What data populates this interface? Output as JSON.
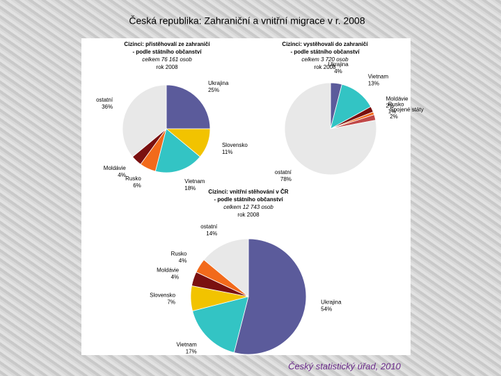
{
  "slide_title": "Česká republika: Zahraniční a vnitřní migrace v r. 2008",
  "footer": "Český statistický úřad, 2010",
  "chart_data": [
    {
      "type": "pie",
      "title": "Cizinci: přistěhovalí ze zahraničí",
      "subtitle": "- podle státního občanství",
      "note": "celkem 76 161 osob",
      "year": "rok 2008",
      "categories": [
        "Ukrajina",
        "Slovensko",
        "Vietnam",
        "Rusko",
        "Moldávie",
        "ostatní"
      ],
      "values": [
        25,
        11,
        18,
        6,
        4,
        36
      ],
      "value_labels": [
        "25%",
        "11%",
        "18%",
        "6%",
        "4%",
        "36%"
      ],
      "colors": [
        "#5b5b9b",
        "#f2c300",
        "#33c4c4",
        "#f26a1b",
        "#7a1010",
        "#e8e8e8"
      ]
    },
    {
      "type": "pie",
      "title": "Cizinci: vystěhovalí do zahraničí",
      "subtitle": "- podle státního občanství",
      "note": "celkem 3 720 osob",
      "year": "rok 2008",
      "categories": [
        "Ukrajina",
        "Vietnam",
        "Moldávie",
        "Rusko",
        "Spojené státy",
        "ostatní"
      ],
      "values": [
        4,
        13,
        2,
        1,
        2,
        78
      ],
      "value_labels": [
        "4%",
        "13%",
        "2%",
        "1%",
        "2%",
        "78%"
      ],
      "colors": [
        "#5b5b9b",
        "#33c4c4",
        "#7a1010",
        "#f26a1b",
        "#c04848",
        "#e8e8e8"
      ]
    },
    {
      "type": "pie",
      "title": "Cizinci: vnitřní stěhování v ČR",
      "subtitle": "- podle státního občanství",
      "note": "celkem 12 743 osob",
      "year": "rok 2008",
      "categories": [
        "Ukrajina",
        "Vietnam",
        "Slovensko",
        "Moldávie",
        "Rusko",
        "ostatní"
      ],
      "values": [
        54,
        17,
        7,
        4,
        4,
        14
      ],
      "value_labels": [
        "54%",
        "17%",
        "7%",
        "4%",
        "4%",
        "14%"
      ],
      "colors": [
        "#5b5b9b",
        "#33c4c4",
        "#f2c300",
        "#7a1010",
        "#f26a1b",
        "#e8e8e8"
      ]
    }
  ]
}
